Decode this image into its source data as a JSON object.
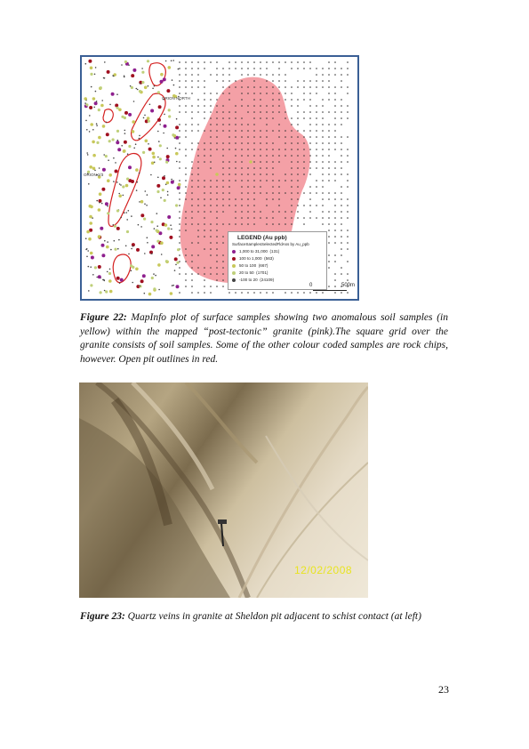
{
  "figure22": {
    "legend": {
      "title": "LEGEND  (Au ppb)",
      "subtitle": "SurfaceSamplesSelectedFldAss by Au_ppb",
      "entries": [
        {
          "range": "1,000 to 31,000",
          "count": "(131)",
          "color": "#8e1f8e"
        },
        {
          "range": "100 to  1,000",
          "count": "(563)",
          "color": "#a01020"
        },
        {
          "range": "50 to    100",
          "count": "(667)",
          "color": "#c8c85a"
        },
        {
          "range": "20 to     50",
          "count": "(1701)",
          "color": "#bfd07a"
        },
        {
          "range": "-100 to     20",
          "count": "(24109)",
          "color": "#444444"
        }
      ]
    },
    "map_labels": [
      {
        "text": "ORION NORTH"
      },
      {
        "text": "ORION 2/3"
      }
    ],
    "scale": {
      "start": "0",
      "end": "500m"
    },
    "caption_label": "Figure 22:",
    "caption_text": " MapInfo plot of surface samples showing two anomalous soil samples (in yellow) within the mapped “post-tectonic” granite (pink).The square grid over the granite consists of soil samples. Some of the other colour coded samples are rock chips, however. Open pit outlines in red."
  },
  "figure23": {
    "datestamp": "12/02/2008",
    "caption_label": "Figure 23:",
    "caption_text": " Quartz veins in granite at Sheldon pit adjacent to schist contact (at left)"
  },
  "page_number": "23"
}
